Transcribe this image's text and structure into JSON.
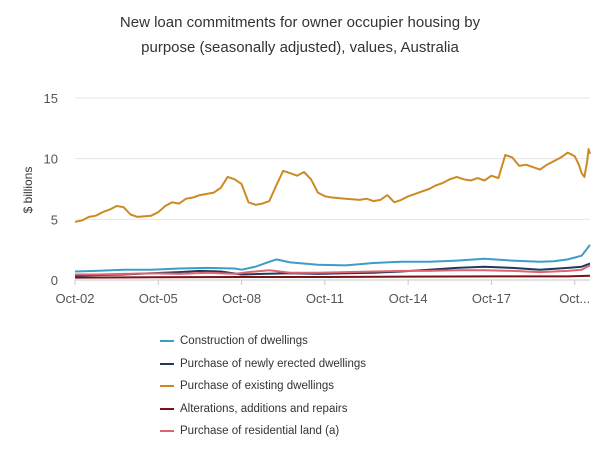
{
  "chart_data": {
    "type": "line",
    "title_lines": [
      "New loan commitments for owner occupier housing by",
      "purpose (seasonally adjusted), values, Australia"
    ],
    "xlabel": "",
    "ylabel": "$ billions",
    "ylim": [
      0,
      15
    ],
    "yticks": [
      "0",
      "5",
      "10",
      "15"
    ],
    "xlim": [
      2002.75,
      2021.3
    ],
    "xticks": [
      {
        "label": "Oct-02",
        "x": 2002.75
      },
      {
        "label": "Oct-05",
        "x": 2005.75
      },
      {
        "label": "Oct-08",
        "x": 2008.75
      },
      {
        "label": "Oct-11",
        "x": 2011.75
      },
      {
        "label": "Oct-14",
        "x": 2014.75
      },
      {
        "label": "Oct-17",
        "x": 2017.75
      },
      {
        "label": "Oct...",
        "x": 2020.75
      }
    ],
    "grid": true,
    "legend_position": "bottom",
    "series": [
      {
        "name": "Construction of dwellings",
        "color": "#3d9dc8",
        "points": [
          [
            2002.75,
            0.7
          ],
          [
            2003.5,
            0.75
          ],
          [
            2004.5,
            0.85
          ],
          [
            2005.5,
            0.85
          ],
          [
            2006.5,
            0.95
          ],
          [
            2007.5,
            1.0
          ],
          [
            2008.5,
            0.95
          ],
          [
            2008.75,
            0.85
          ],
          [
            2009.25,
            1.1
          ],
          [
            2009.75,
            1.5
          ],
          [
            2010.0,
            1.7
          ],
          [
            2010.5,
            1.45
          ],
          [
            2011.5,
            1.25
          ],
          [
            2012.5,
            1.2
          ],
          [
            2013.5,
            1.4
          ],
          [
            2014.5,
            1.5
          ],
          [
            2015.5,
            1.5
          ],
          [
            2016.5,
            1.6
          ],
          [
            2017.5,
            1.75
          ],
          [
            2018.5,
            1.6
          ],
          [
            2019.5,
            1.5
          ],
          [
            2020.0,
            1.55
          ],
          [
            2020.5,
            1.7
          ],
          [
            2021.0,
            2.0
          ],
          [
            2021.3,
            2.9
          ]
        ]
      },
      {
        "name": "Purchase of newly erected dwellings",
        "color": "#1e3a5c",
        "points": [
          [
            2002.75,
            0.35
          ],
          [
            2003.5,
            0.4
          ],
          [
            2004.5,
            0.45
          ],
          [
            2005.5,
            0.55
          ],
          [
            2006.5,
            0.65
          ],
          [
            2007.25,
            0.75
          ],
          [
            2008.0,
            0.7
          ],
          [
            2008.75,
            0.45
          ],
          [
            2009.5,
            0.5
          ],
          [
            2010.5,
            0.55
          ],
          [
            2011.5,
            0.5
          ],
          [
            2012.5,
            0.55
          ],
          [
            2013.5,
            0.6
          ],
          [
            2014.5,
            0.7
          ],
          [
            2015.5,
            0.85
          ],
          [
            2016.5,
            1.0
          ],
          [
            2017.5,
            1.1
          ],
          [
            2018.5,
            1.0
          ],
          [
            2019.5,
            0.85
          ],
          [
            2020.5,
            1.0
          ],
          [
            2021.0,
            1.1
          ],
          [
            2021.3,
            1.35
          ]
        ]
      },
      {
        "name": "Purchase of existing dwellings",
        "color": "#cc8a22",
        "points": [
          [
            2002.75,
            4.8
          ],
          [
            2003.0,
            4.9
          ],
          [
            2003.25,
            5.2
          ],
          [
            2003.5,
            5.3
          ],
          [
            2003.75,
            5.6
          ],
          [
            2004.0,
            5.8
          ],
          [
            2004.25,
            6.1
          ],
          [
            2004.5,
            6.0
          ],
          [
            2004.75,
            5.4
          ],
          [
            2005.0,
            5.2
          ],
          [
            2005.5,
            5.3
          ],
          [
            2005.75,
            5.6
          ],
          [
            2006.0,
            6.1
          ],
          [
            2006.25,
            6.4
          ],
          [
            2006.5,
            6.3
          ],
          [
            2006.75,
            6.7
          ],
          [
            2007.0,
            6.8
          ],
          [
            2007.25,
            7.0
          ],
          [
            2007.5,
            7.1
          ],
          [
            2007.75,
            7.2
          ],
          [
            2008.0,
            7.6
          ],
          [
            2008.25,
            8.5
          ],
          [
            2008.5,
            8.3
          ],
          [
            2008.75,
            7.9
          ],
          [
            2009.0,
            6.4
          ],
          [
            2009.25,
            6.2
          ],
          [
            2009.5,
            6.3
          ],
          [
            2009.75,
            6.5
          ],
          [
            2010.0,
            7.8
          ],
          [
            2010.25,
            9.0
          ],
          [
            2010.5,
            8.8
          ],
          [
            2010.75,
            8.6
          ],
          [
            2011.0,
            8.9
          ],
          [
            2011.25,
            8.3
          ],
          [
            2011.5,
            7.2
          ],
          [
            2011.75,
            6.9
          ],
          [
            2012.0,
            6.8
          ],
          [
            2012.5,
            6.7
          ],
          [
            2013.0,
            6.6
          ],
          [
            2013.25,
            6.7
          ],
          [
            2013.5,
            6.5
          ],
          [
            2013.75,
            6.6
          ],
          [
            2014.0,
            7.0
          ],
          [
            2014.25,
            6.4
          ],
          [
            2014.5,
            6.6
          ],
          [
            2014.75,
            6.9
          ],
          [
            2015.0,
            7.1
          ],
          [
            2015.25,
            7.3
          ],
          [
            2015.5,
            7.5
          ],
          [
            2015.75,
            7.8
          ],
          [
            2016.0,
            8.0
          ],
          [
            2016.25,
            8.3
          ],
          [
            2016.5,
            8.5
          ],
          [
            2016.75,
            8.3
          ],
          [
            2017.0,
            8.2
          ],
          [
            2017.25,
            8.4
          ],
          [
            2017.5,
            8.2
          ],
          [
            2017.75,
            8.6
          ],
          [
            2018.0,
            8.4
          ],
          [
            2018.25,
            10.3
          ],
          [
            2018.5,
            10.1
          ],
          [
            2018.75,
            9.4
          ],
          [
            2019.0,
            9.5
          ],
          [
            2019.25,
            9.3
          ],
          [
            2019.5,
            9.1
          ],
          [
            2019.75,
            9.5
          ],
          [
            2020.0,
            9.8
          ],
          [
            2020.25,
            10.1
          ],
          [
            2020.5,
            10.5
          ],
          [
            2020.75,
            10.2
          ],
          [
            2020.9,
            9.5
          ],
          [
            2021.0,
            8.8
          ],
          [
            2021.1,
            8.5
          ],
          [
            2021.2,
            9.8
          ],
          [
            2021.25,
            10.8
          ],
          [
            2021.3,
            10.4
          ]
        ]
      },
      {
        "name": "Alterations, additions and repairs",
        "color": "#7a1216",
        "points": [
          [
            2002.75,
            0.2
          ],
          [
            2005.5,
            0.22
          ],
          [
            2008.75,
            0.25
          ],
          [
            2011.75,
            0.25
          ],
          [
            2014.75,
            0.28
          ],
          [
            2017.75,
            0.3
          ],
          [
            2020.5,
            0.3
          ],
          [
            2021.3,
            0.35
          ]
        ]
      },
      {
        "name": "Purchase of residential land (a)",
        "color": "#e06470",
        "points": [
          [
            2002.75,
            0.45
          ],
          [
            2003.5,
            0.45
          ],
          [
            2004.5,
            0.5
          ],
          [
            2005.5,
            0.55
          ],
          [
            2006.5,
            0.5
          ],
          [
            2007.5,
            0.6
          ],
          [
            2008.5,
            0.5
          ],
          [
            2009.0,
            0.65
          ],
          [
            2009.75,
            0.8
          ],
          [
            2010.5,
            0.6
          ],
          [
            2011.5,
            0.6
          ],
          [
            2012.5,
            0.65
          ],
          [
            2013.5,
            0.7
          ],
          [
            2014.5,
            0.75
          ],
          [
            2015.5,
            0.75
          ],
          [
            2016.5,
            0.8
          ],
          [
            2017.5,
            0.8
          ],
          [
            2018.5,
            0.75
          ],
          [
            2019.5,
            0.65
          ],
          [
            2020.5,
            0.75
          ],
          [
            2021.0,
            0.85
          ],
          [
            2021.3,
            1.2
          ]
        ]
      }
    ]
  }
}
